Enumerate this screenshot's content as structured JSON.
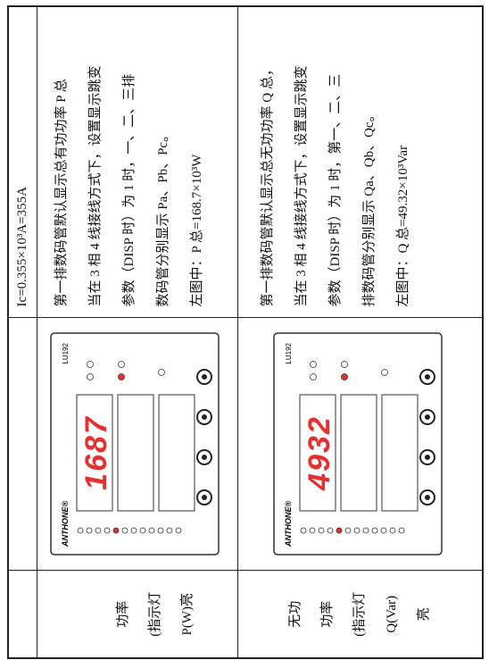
{
  "table": {
    "note": "Ic=0.355×10³A=355A",
    "rows": [
      {
        "label_lines": [
          "功率",
          "(指示灯",
          "P(W)亮"
        ],
        "device": {
          "brand": "ANTHONE®",
          "model": "LU192",
          "display": "1687"
        },
        "text_lines": [
          "第一排数码管默认显示总有功功率 P 总",
          "当在 3 相 4 线接线方式下，设置显示跳变",
          "参数（DISP 时）为 1 时，一、二、三排",
          "数码管分别显示 Pa、Pb、Pc。",
          "左图中：P 总=168.7×10³W"
        ]
      },
      {
        "label_lines": [
          "无功",
          "功率",
          "(指示灯",
          "Q(Var)",
          "亮"
        ],
        "device": {
          "brand": "ANTHONE®",
          "model": "LU192",
          "display": "4932"
        },
        "text_lines": [
          "第一排数码管默认显示总无功功率 Q 总，",
          "当在 3 相 4 线接线方式下，设置显示跳变",
          "参数（DISP 时）为 1 时，第一、二、三",
          "排数码管分别显示 Qa、Qb、Qc。",
          "左图中：Q 总=49.32×10³Var"
        ]
      }
    ]
  }
}
